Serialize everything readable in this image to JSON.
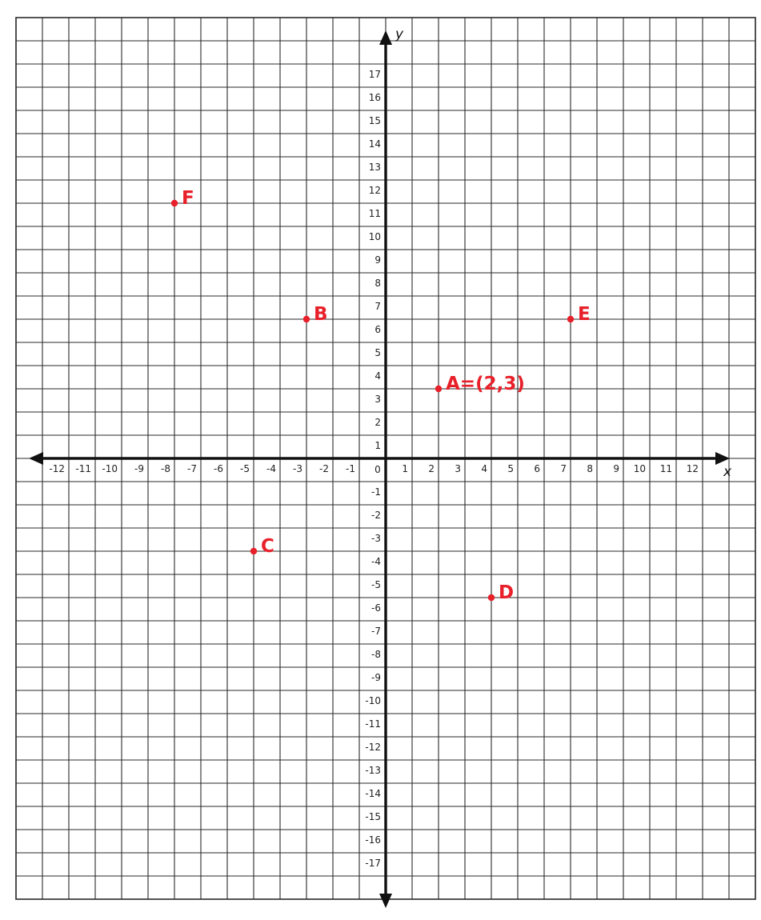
{
  "chart_data": {
    "type": "scatter",
    "xlabel": "x",
    "ylabel": "y",
    "xlim": [
      -12,
      12
    ],
    "ylim": [
      -17,
      17
    ],
    "x_ticks": [
      -12,
      -11,
      -10,
      -9,
      -8,
      -7,
      -6,
      -5,
      -4,
      -3,
      -2,
      -1,
      0,
      1,
      2,
      3,
      4,
      5,
      6,
      7,
      8,
      9,
      10,
      11,
      12
    ],
    "y_ticks": [
      17,
      16,
      15,
      14,
      13,
      12,
      11,
      10,
      9,
      8,
      7,
      6,
      5,
      4,
      3,
      2,
      1,
      -1,
      -2,
      -3,
      -4,
      -5,
      -6,
      -7,
      -8,
      -9,
      -10,
      -11,
      -12,
      -13,
      -14,
      -15,
      -16,
      -17
    ],
    "origin_label": "0",
    "grid": true,
    "point_color": "#e8202a",
    "points": [
      {
        "label": "A=(2,3)",
        "x": 2,
        "y": 3
      },
      {
        "label": "B",
        "x": -3,
        "y": 6
      },
      {
        "label": "C",
        "x": -5,
        "y": -4
      },
      {
        "label": "D",
        "x": 4,
        "y": -6
      },
      {
        "label": "E",
        "x": 7,
        "y": 6
      },
      {
        "label": "F",
        "x": -8,
        "y": 11
      }
    ]
  }
}
